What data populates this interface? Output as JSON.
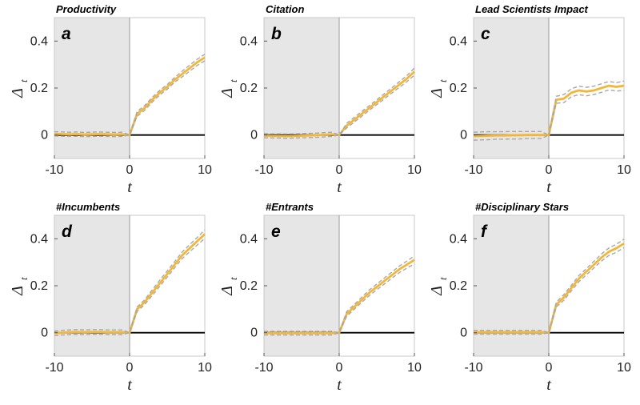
{
  "chart_data": [
    {
      "type": "line",
      "letter": "a",
      "title": "Productivity",
      "xlabel": "t",
      "ylabel": "Δ",
      "ylabel_sub": "t",
      "xlim": [
        -10,
        10
      ],
      "ylim": [
        -0.1,
        0.5
      ],
      "xticks": [
        "-10",
        "0",
        "10"
      ],
      "yticks": [
        "0",
        "0.2",
        "0.4"
      ],
      "shaded_region": [
        -10,
        0
      ],
      "baseline": 0,
      "x": [
        -10,
        -9,
        -8,
        -7,
        -6,
        -5,
        -4,
        -3,
        -2,
        -1,
        0,
        1,
        2,
        3,
        4,
        5,
        6,
        7,
        8,
        9,
        10
      ],
      "series": [
        {
          "name": "estimate",
          "values": [
            0.005,
            0.004,
            0.003,
            0.004,
            0.002,
            0.003,
            0.004,
            0.003,
            0.002,
            0.003,
            0.0,
            0.09,
            0.115,
            0.15,
            0.18,
            0.205,
            0.235,
            0.26,
            0.285,
            0.31,
            0.33
          ]
        },
        {
          "name": "upper CI",
          "values": [
            0.014,
            0.013,
            0.012,
            0.013,
            0.011,
            0.012,
            0.013,
            0.012,
            0.011,
            0.012,
            0.0,
            0.1,
            0.125,
            0.16,
            0.19,
            0.215,
            0.245,
            0.272,
            0.298,
            0.323,
            0.344
          ]
        },
        {
          "name": "lower CI",
          "values": [
            -0.004,
            -0.005,
            -0.006,
            -0.005,
            -0.007,
            -0.006,
            -0.005,
            -0.006,
            -0.007,
            -0.006,
            0.0,
            0.08,
            0.105,
            0.14,
            0.17,
            0.195,
            0.225,
            0.248,
            0.272,
            0.297,
            0.316
          ]
        }
      ]
    },
    {
      "type": "line",
      "letter": "b",
      "title": "Citation",
      "xlabel": "t",
      "ylabel": "Δ",
      "ylabel_sub": "t",
      "xlim": [
        -10,
        10
      ],
      "ylim": [
        -0.1,
        0.5
      ],
      "xticks": [
        "-10",
        "0",
        "10"
      ],
      "yticks": [
        "0",
        "0.2",
        "0.4"
      ],
      "shaded_region": [
        -10,
        0
      ],
      "baseline": 0,
      "x": [
        -10,
        -9,
        -8,
        -7,
        -6,
        -5,
        -4,
        -3,
        -2,
        -1,
        0,
        1,
        2,
        3,
        4,
        5,
        6,
        7,
        8,
        9,
        10
      ],
      "series": [
        {
          "name": "estimate",
          "values": [
            -0.003,
            -0.004,
            -0.004,
            -0.005,
            -0.004,
            -0.003,
            -0.002,
            -0.001,
            0.001,
            0.003,
            0.0,
            0.04,
            0.065,
            0.09,
            0.115,
            0.14,
            0.165,
            0.19,
            0.215,
            0.24,
            0.27
          ]
        },
        {
          "name": "upper CI",
          "values": [
            0.006,
            0.005,
            0.005,
            0.004,
            0.005,
            0.006,
            0.007,
            0.008,
            0.01,
            0.012,
            0.0,
            0.05,
            0.075,
            0.1,
            0.125,
            0.15,
            0.176,
            0.201,
            0.227,
            0.253,
            0.285
          ]
        },
        {
          "name": "lower CI",
          "values": [
            -0.012,
            -0.013,
            -0.013,
            -0.014,
            -0.013,
            -0.012,
            -0.011,
            -0.01,
            -0.008,
            -0.006,
            0.0,
            0.03,
            0.055,
            0.08,
            0.105,
            0.13,
            0.154,
            0.179,
            0.203,
            0.227,
            0.255
          ]
        }
      ]
    },
    {
      "type": "line",
      "letter": "c",
      "title": "Lead Scientists Impact",
      "xlabel": "t",
      "ylabel": "Δ",
      "ylabel_sub": "t",
      "xlim": [
        -10,
        10
      ],
      "ylim": [
        -0.1,
        0.5
      ],
      "xticks": [
        "-10",
        "0",
        "10"
      ],
      "yticks": [
        "0",
        "0.2",
        "0.4"
      ],
      "shaded_region": [
        -10,
        0
      ],
      "baseline": 0,
      "x": [
        -10,
        -9,
        -8,
        -7,
        -6,
        -5,
        -4,
        -3,
        -2,
        -1,
        0,
        1,
        2,
        3,
        4,
        5,
        6,
        7,
        8,
        9,
        10
      ],
      "series": [
        {
          "name": "estimate",
          "values": [
            -0.005,
            -0.004,
            -0.003,
            -0.002,
            -0.002,
            -0.001,
            -0.001,
            0.0,
            0.0,
            0.0,
            0.0,
            0.15,
            0.155,
            0.18,
            0.19,
            0.185,
            0.19,
            0.2,
            0.21,
            0.205,
            0.21
          ]
        },
        {
          "name": "upper CI",
          "values": [
            0.012,
            0.013,
            0.014,
            0.014,
            0.014,
            0.015,
            0.015,
            0.015,
            0.015,
            0.015,
            0.0,
            0.165,
            0.172,
            0.197,
            0.208,
            0.203,
            0.208,
            0.218,
            0.228,
            0.223,
            0.23
          ]
        },
        {
          "name": "lower CI",
          "values": [
            -0.022,
            -0.021,
            -0.02,
            -0.018,
            -0.018,
            -0.017,
            -0.017,
            -0.015,
            -0.015,
            -0.015,
            0.0,
            0.135,
            0.138,
            0.163,
            0.172,
            0.167,
            0.172,
            0.182,
            0.192,
            0.187,
            0.19
          ]
        }
      ]
    },
    {
      "type": "line",
      "letter": "d",
      "title": "#Incumbents",
      "xlabel": "t",
      "ylabel": "Δ",
      "ylabel_sub": "t",
      "xlim": [
        -10,
        10
      ],
      "ylim": [
        -0.1,
        0.5
      ],
      "xticks": [
        "-10",
        "0",
        "10"
      ],
      "yticks": [
        "0",
        "0.2",
        "0.4"
      ],
      "shaded_region": [
        -10,
        0
      ],
      "baseline": 0,
      "x": [
        -10,
        -9,
        -8,
        -7,
        -6,
        -5,
        -4,
        -3,
        -2,
        -1,
        0,
        1,
        2,
        3,
        4,
        5,
        6,
        7,
        8,
        9,
        10
      ],
      "series": [
        {
          "name": "estimate",
          "values": [
            -0.003,
            0.0,
            0.002,
            0.003,
            0.002,
            0.003,
            0.003,
            0.002,
            0.002,
            0.002,
            0.0,
            0.1,
            0.13,
            0.17,
            0.21,
            0.25,
            0.29,
            0.33,
            0.36,
            0.39,
            0.42
          ]
        },
        {
          "name": "upper CI",
          "values": [
            0.007,
            0.01,
            0.012,
            0.013,
            0.012,
            0.013,
            0.013,
            0.012,
            0.012,
            0.012,
            0.0,
            0.11,
            0.14,
            0.182,
            0.223,
            0.263,
            0.303,
            0.344,
            0.375,
            0.406,
            0.438
          ]
        },
        {
          "name": "lower CI",
          "values": [
            -0.013,
            -0.01,
            -0.008,
            -0.007,
            -0.008,
            -0.007,
            -0.007,
            -0.008,
            -0.008,
            -0.008,
            0.0,
            0.09,
            0.12,
            0.158,
            0.197,
            0.237,
            0.277,
            0.316,
            0.345,
            0.374,
            0.402
          ]
        }
      ]
    },
    {
      "type": "line",
      "letter": "e",
      "title": "#Entrants",
      "xlabel": "t",
      "ylabel": "Δ",
      "ylabel_sub": "t",
      "xlim": [
        -10,
        10
      ],
      "ylim": [
        -0.1,
        0.5
      ],
      "xticks": [
        "-10",
        "0",
        "10"
      ],
      "yticks": [
        "0",
        "0.2",
        "0.4"
      ],
      "shaded_region": [
        -10,
        0
      ],
      "baseline": 0,
      "x": [
        -10,
        -9,
        -8,
        -7,
        -6,
        -5,
        -4,
        -3,
        -2,
        -1,
        0,
        1,
        2,
        3,
        4,
        5,
        6,
        7,
        8,
        9,
        10
      ],
      "series": [
        {
          "name": "estimate",
          "values": [
            -0.002,
            -0.002,
            -0.002,
            -0.002,
            -0.002,
            -0.002,
            -0.002,
            -0.002,
            -0.002,
            -0.002,
            0.0,
            0.08,
            0.11,
            0.14,
            0.17,
            0.195,
            0.22,
            0.245,
            0.27,
            0.29,
            0.31
          ]
        },
        {
          "name": "upper CI",
          "values": [
            0.006,
            0.006,
            0.006,
            0.006,
            0.006,
            0.006,
            0.006,
            0.006,
            0.006,
            0.006,
            0.0,
            0.09,
            0.12,
            0.151,
            0.182,
            0.207,
            0.233,
            0.258,
            0.284,
            0.305,
            0.327
          ]
        },
        {
          "name": "lower CI",
          "values": [
            -0.01,
            -0.01,
            -0.01,
            -0.01,
            -0.01,
            -0.01,
            -0.01,
            -0.01,
            -0.01,
            -0.01,
            0.0,
            0.07,
            0.1,
            0.129,
            0.158,
            0.183,
            0.207,
            0.232,
            0.256,
            0.275,
            0.293
          ]
        }
      ]
    },
    {
      "type": "line",
      "letter": "f",
      "title": "#Disciplinary Stars",
      "xlabel": "t",
      "ylabel": "Δ",
      "ylabel_sub": "t",
      "xlim": [
        -10,
        10
      ],
      "ylim": [
        -0.1,
        0.5
      ],
      "xticks": [
        "-10",
        "0",
        "10"
      ],
      "yticks": [
        "0",
        "0.2",
        "0.4"
      ],
      "shaded_region": [
        -10,
        0
      ],
      "baseline": 0,
      "x": [
        -10,
        -9,
        -8,
        -7,
        -6,
        -5,
        -4,
        -3,
        -2,
        -1,
        0,
        1,
        2,
        3,
        4,
        5,
        6,
        7,
        8,
        9,
        10
      ],
      "series": [
        {
          "name": "estimate",
          "values": [
            0.002,
            0.002,
            0.002,
            0.002,
            0.002,
            0.002,
            0.002,
            0.002,
            0.002,
            0.002,
            0.0,
            0.12,
            0.15,
            0.19,
            0.23,
            0.26,
            0.29,
            0.32,
            0.345,
            0.36,
            0.38
          ]
        },
        {
          "name": "upper CI",
          "values": [
            0.01,
            0.01,
            0.01,
            0.01,
            0.01,
            0.01,
            0.01,
            0.01,
            0.01,
            0.01,
            0.0,
            0.13,
            0.162,
            0.202,
            0.243,
            0.273,
            0.304,
            0.335,
            0.361,
            0.377,
            0.398
          ]
        },
        {
          "name": "lower CI",
          "values": [
            -0.006,
            -0.006,
            -0.006,
            -0.006,
            -0.006,
            -0.006,
            -0.006,
            -0.006,
            -0.006,
            -0.006,
            0.0,
            0.11,
            0.138,
            0.178,
            0.217,
            0.247,
            0.276,
            0.305,
            0.329,
            0.343,
            0.362
          ]
        }
      ]
    }
  ],
  "colors": {
    "estimate": "#f2b73a",
    "ci": "#a8a8a8",
    "shade": "#e6e6e6",
    "baseline": "#000000",
    "divider": "#9a9a9a",
    "frame": "#c8c8c8"
  }
}
